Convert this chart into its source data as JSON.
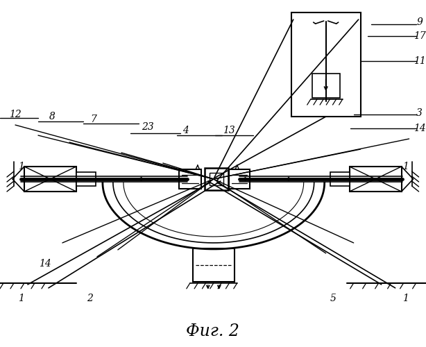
{
  "title": "Фиг. 2",
  "bg_color": "#ffffff",
  "line_color": "#000000",
  "figsize": [
    6.14,
    5.0
  ],
  "dpi": 100
}
